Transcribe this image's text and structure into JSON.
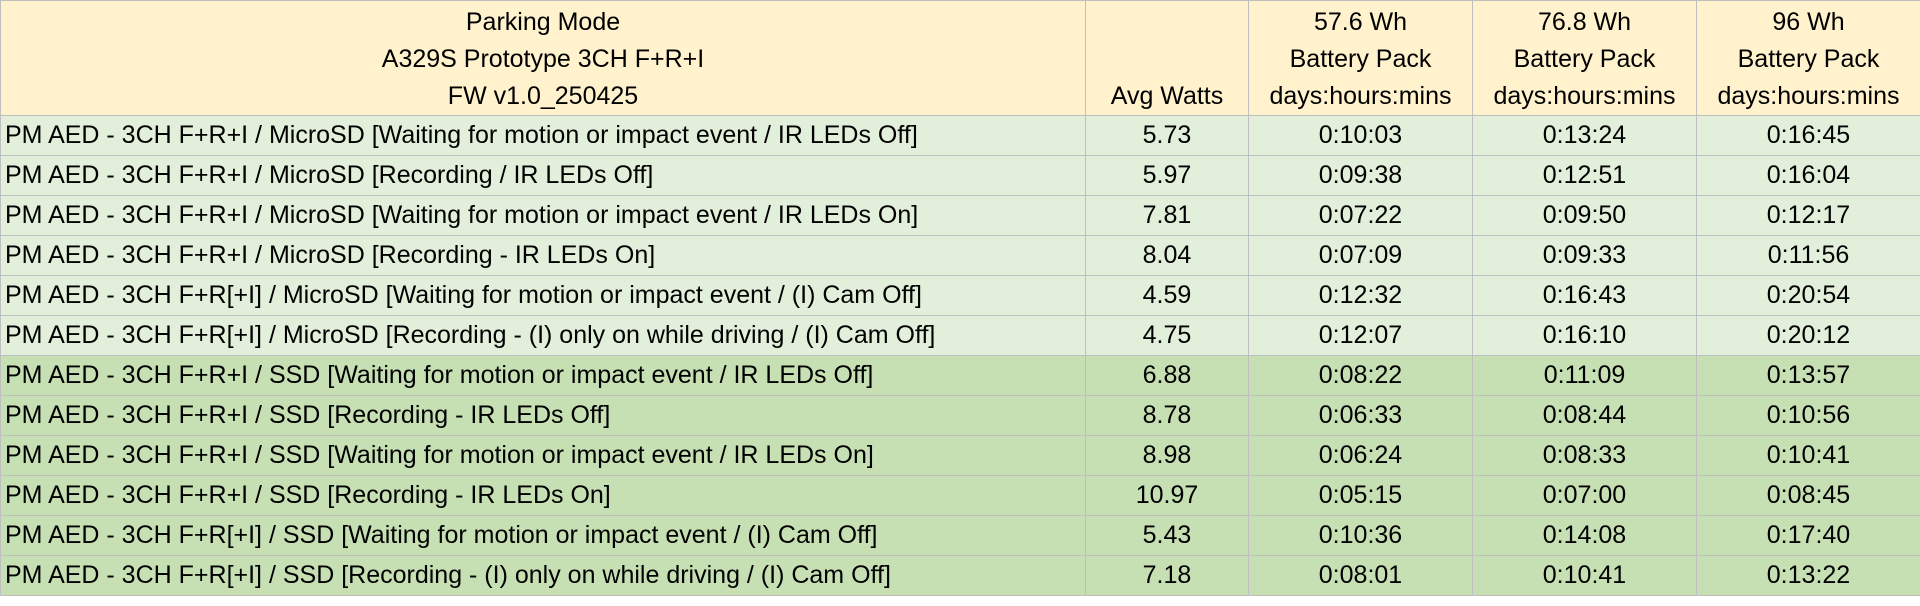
{
  "table": {
    "header": [
      [
        "Parking Mode",
        "A329S Prototype 3CH F+R+I",
        "FW v1.0_250425"
      ],
      [
        "Avg Watts"
      ],
      [
        "57.6 Wh",
        "Battery Pack",
        "days:hours:mins"
      ],
      [
        "76.8 Wh",
        "Battery Pack",
        "days:hours:mins"
      ],
      [
        "96 Wh",
        "Battery Pack",
        "days:hours:mins"
      ]
    ],
    "rows": [
      [
        "PM AED - 3CH F+R+I / MicroSD [Waiting for motion or impact event / IR LEDs Off]",
        "5.73",
        "0:10:03",
        "0:13:24",
        "0:16:45"
      ],
      [
        "PM AED - 3CH F+R+I / MicroSD [Recording / IR LEDs Off]",
        "5.97",
        "0:09:38",
        "0:12:51",
        "0:16:04"
      ],
      [
        "PM AED - 3CH F+R+I / MicroSD [Waiting for motion or impact event / IR LEDs On]",
        "7.81",
        "0:07:22",
        "0:09:50",
        "0:12:17"
      ],
      [
        "PM AED - 3CH F+R+I / MicroSD [Recording - IR LEDs On]",
        "8.04",
        "0:07:09",
        "0:09:33",
        "0:11:56"
      ],
      [
        "PM AED - 3CH F+R[+I] / MicroSD [Waiting for motion or impact event / (I) Cam Off]",
        "4.59",
        "0:12:32",
        "0:16:43",
        "0:20:54"
      ],
      [
        "PM AED - 3CH F+R[+I] / MicroSD [Recording - (I) only on while driving / (I) Cam Off]",
        "4.75",
        "0:12:07",
        "0:16:10",
        "0:20:12"
      ],
      [
        "PM AED - 3CH F+R+I / SSD [Waiting for motion or impact event / IR LEDs Off]",
        "6.88",
        "0:08:22",
        "0:11:09",
        "0:13:57"
      ],
      [
        "PM AED - 3CH F+R+I / SSD [Recording - IR LEDs Off]",
        "8.78",
        "0:06:33",
        "0:08:44",
        "0:10:56"
      ],
      [
        "PM AED - 3CH F+R+I / SSD [Waiting for motion or impact event / IR LEDs On]",
        "8.98",
        "0:06:24",
        "0:08:33",
        "0:10:41"
      ],
      [
        "PM AED - 3CH F+R+I / SSD [Recording - IR LEDs On]",
        "10.97",
        "0:05:15",
        "0:07:00",
        "0:08:45"
      ],
      [
        "PM AED - 3CH F+R[+I] / SSD [Waiting for motion or impact event / (I) Cam Off]",
        "5.43",
        "0:10:36",
        "0:14:08",
        "0:17:40"
      ],
      [
        "PM AED - 3CH F+R[+I] / SSD [Recording - (I) only on while driving / (I) Cam Off]",
        "7.18",
        "0:08:01",
        "0:10:41",
        "0:13:22"
      ]
    ]
  }
}
